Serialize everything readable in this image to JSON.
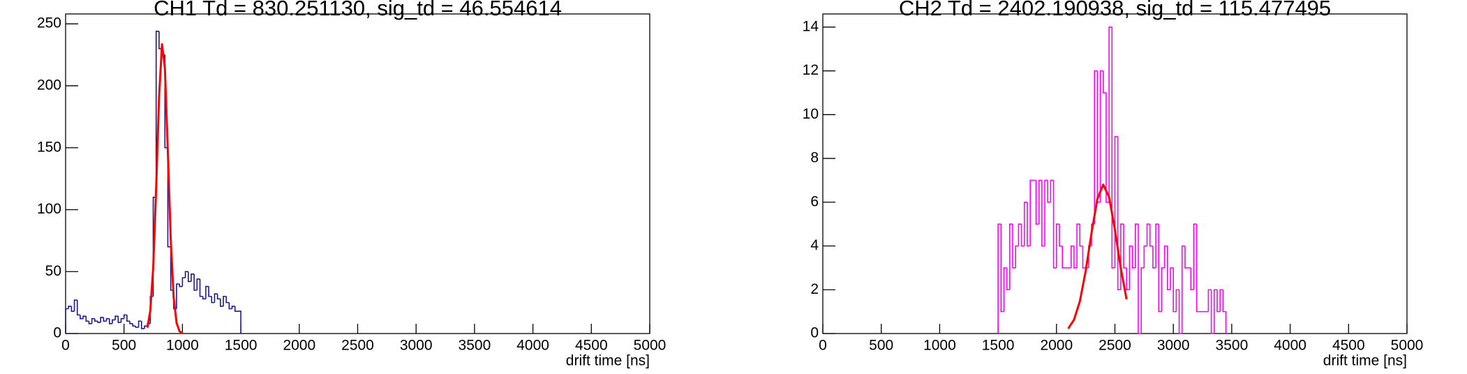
{
  "chart_data": [
    {
      "type": "histogram",
      "title": "CH1 Td = 830.251130, sig_td = 46.554614",
      "xlabel": "drift time [ns]",
      "color": "#1a1a8c",
      "bins": [
        0,
        25,
        50,
        75,
        100,
        125,
        150,
        175,
        200,
        225,
        250,
        275,
        300,
        325,
        350,
        375,
        400,
        425,
        450,
        475,
        500,
        525,
        550,
        575,
        600,
        625,
        650,
        675,
        700,
        725,
        750,
        775,
        800,
        825,
        850,
        875,
        900,
        925,
        950,
        975,
        1000,
        1025,
        1050,
        1075,
        1100,
        1125,
        1150,
        1175,
        1200,
        1225,
        1250,
        1275,
        1300,
        1325,
        1350,
        1375,
        1400,
        1425,
        1450,
        1475,
        1500
      ],
      "values": [
        20,
        22,
        18,
        27,
        15,
        12,
        14,
        10,
        8,
        12,
        10,
        9,
        13,
        10,
        12,
        8,
        11,
        14,
        9,
        12,
        15,
        10,
        8,
        6,
        5,
        10,
        4,
        6,
        8,
        30,
        110,
        244,
        230,
        225,
        150,
        70,
        35,
        20,
        40,
        38,
        45,
        50,
        42,
        48,
        35,
        44,
        30,
        28,
        38,
        30,
        25,
        32,
        28,
        22,
        30,
        25,
        20,
        22,
        18,
        18
      ],
      "fit": {
        "color": "#ff0000",
        "x": [
          700,
          725,
          750,
          775,
          800,
          825,
          850,
          875,
          900,
          925,
          950,
          975,
          1000
        ],
        "values": [
          4.7,
          18.5,
          53.7,
          117,
          191,
          233.6,
          214,
          147,
          76,
          29,
          8.5,
          1.8,
          0.3
        ]
      },
      "xlim": [
        0,
        5000
      ],
      "ylim": [
        0,
        258
      ],
      "xticks": [
        0,
        500,
        1000,
        1500,
        2000,
        2500,
        3000,
        3500,
        4000,
        4500,
        5000
      ],
      "yticks": [
        0,
        50,
        100,
        150,
        200,
        250
      ]
    },
    {
      "type": "histogram",
      "title": "CH2 Td = 2402.190938, sig_td = 115.477495",
      "xlabel": "drift time [ns]",
      "color": "#ff00ff",
      "bins": [
        1500,
        1525,
        1550,
        1575,
        1600,
        1625,
        1650,
        1675,
        1700,
        1725,
        1750,
        1775,
        1800,
        1825,
        1850,
        1875,
        1900,
        1925,
        1950,
        1975,
        2000,
        2025,
        2050,
        2075,
        2100,
        2125,
        2150,
        2175,
        2200,
        2225,
        2250,
        2275,
        2300,
        2325,
        2350,
        2375,
        2400,
        2425,
        2450,
        2475,
        2500,
        2525,
        2550,
        2575,
        2600,
        2625,
        2650,
        2675,
        2700,
        2725,
        2750,
        2775,
        2800,
        2825,
        2850,
        2875,
        2900,
        2925,
        2950,
        2975,
        3000,
        3025,
        3050,
        3075,
        3100,
        3125,
        3150,
        3175,
        3200,
        3225,
        3250,
        3275,
        3300,
        3325,
        3350,
        3375,
        3400,
        3425,
        3450
      ],
      "values": [
        5,
        1,
        3,
        2,
        5,
        3,
        4,
        5,
        4,
        6,
        4,
        7,
        7,
        5,
        7,
        4,
        7,
        6,
        7,
        3,
        5,
        4,
        3,
        3,
        3,
        4,
        3,
        5,
        4,
        3,
        3,
        4,
        5,
        12,
        6,
        12,
        11,
        6,
        14,
        3,
        9,
        2,
        5,
        3,
        2,
        4,
        3,
        5,
        0,
        3,
        4,
        5,
        4,
        3,
        5,
        1,
        3,
        4,
        2,
        3,
        1,
        2,
        0,
        4,
        3,
        3,
        2,
        5,
        1,
        1,
        1,
        1,
        2,
        0,
        2,
        1,
        2,
        1
      ],
      "fit": {
        "color": "#ff0000",
        "x": [
          2100,
          2150,
          2200,
          2250,
          2300,
          2350,
          2400,
          2450,
          2500,
          2550,
          2600
        ],
        "values": [
          0.22,
          0.63,
          1.47,
          2.86,
          4.6,
          6.15,
          6.8,
          6.24,
          4.74,
          3.0,
          1.56
        ]
      },
      "xlim": [
        0,
        5000
      ],
      "ylim": [
        0,
        14.6
      ],
      "xticks": [
        0,
        500,
        1000,
        1500,
        2000,
        2500,
        3000,
        3500,
        4000,
        4500,
        5000
      ],
      "yticks": [
        0,
        2,
        4,
        6,
        8,
        10,
        12,
        14
      ]
    }
  ]
}
